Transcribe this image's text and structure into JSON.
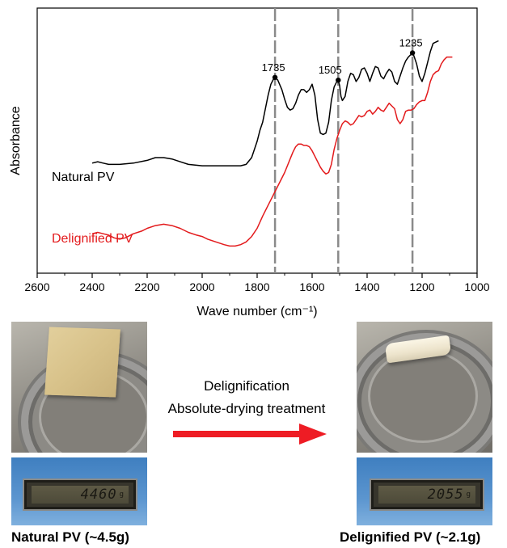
{
  "chart_data": {
    "type": "line",
    "title": "",
    "xlabel": "Wave number (cm⁻¹)",
    "ylabel": "Absorbance",
    "xlim": [
      2600,
      1000
    ],
    "x_reversed": true,
    "xticks": [
      2600,
      2400,
      2200,
      2000,
      1800,
      1600,
      1400,
      1200,
      1000
    ],
    "yticks_shown": false,
    "grid": false,
    "legend": "labels placed beside each curve",
    "series": [
      {
        "name": "Natural PV",
        "color": "#000000",
        "x": [
          2400,
          2380,
          2360,
          2340,
          2300,
          2250,
          2200,
          2170,
          2140,
          2110,
          2080,
          2050,
          2000,
          1960,
          1920,
          1880,
          1860,
          1840,
          1820,
          1800,
          1790,
          1780,
          1770,
          1760,
          1750,
          1740,
          1735,
          1725,
          1710,
          1700,
          1690,
          1680,
          1670,
          1660,
          1650,
          1640,
          1630,
          1620,
          1610,
          1600,
          1590,
          1580,
          1570,
          1560,
          1550,
          1540,
          1530,
          1520,
          1510,
          1505,
          1500,
          1495,
          1490,
          1480,
          1470,
          1460,
          1450,
          1440,
          1430,
          1420,
          1410,
          1400,
          1390,
          1380,
          1370,
          1360,
          1350,
          1340,
          1330,
          1320,
          1310,
          1300,
          1290,
          1280,
          1270,
          1260,
          1250,
          1240,
          1235,
          1230,
          1220,
          1210,
          1200,
          1190,
          1180,
          1170,
          1160,
          1150,
          1140
        ],
        "y": [
          0.06,
          0.07,
          0.06,
          0.05,
          0.05,
          0.06,
          0.08,
          0.1,
          0.1,
          0.09,
          0.07,
          0.05,
          0.04,
          0.04,
          0.04,
          0.04,
          0.04,
          0.05,
          0.1,
          0.22,
          0.3,
          0.36,
          0.46,
          0.56,
          0.64,
          0.68,
          0.69,
          0.67,
          0.6,
          0.53,
          0.47,
          0.45,
          0.46,
          0.5,
          0.56,
          0.6,
          0.6,
          0.58,
          0.6,
          0.64,
          0.56,
          0.38,
          0.28,
          0.27,
          0.28,
          0.36,
          0.52,
          0.62,
          0.66,
          0.67,
          0.63,
          0.55,
          0.52,
          0.55,
          0.66,
          0.72,
          0.71,
          0.66,
          0.69,
          0.75,
          0.76,
          0.72,
          0.66,
          0.72,
          0.77,
          0.76,
          0.7,
          0.68,
          0.72,
          0.75,
          0.73,
          0.66,
          0.64,
          0.7,
          0.76,
          0.81,
          0.84,
          0.86,
          0.87,
          0.85,
          0.79,
          0.7,
          0.66,
          0.72,
          0.8,
          0.88,
          0.94,
          0.95,
          0.96
        ]
      },
      {
        "name": "Delignified PV",
        "color": "#e31a1c",
        "x": [
          2400,
          2380,
          2360,
          2340,
          2320,
          2300,
          2280,
          2250,
          2220,
          2200,
          2170,
          2140,
          2110,
          2080,
          2050,
          2020,
          2000,
          1980,
          1950,
          1920,
          1900,
          1880,
          1860,
          1840,
          1820,
          1800,
          1780,
          1760,
          1740,
          1720,
          1700,
          1690,
          1680,
          1670,
          1660,
          1650,
          1640,
          1630,
          1620,
          1610,
          1600,
          1590,
          1580,
          1570,
          1560,
          1550,
          1540,
          1530,
          1520,
          1510,
          1500,
          1490,
          1480,
          1470,
          1460,
          1450,
          1440,
          1430,
          1420,
          1410,
          1400,
          1390,
          1380,
          1370,
          1360,
          1350,
          1340,
          1330,
          1320,
          1310,
          1300,
          1290,
          1280,
          1270,
          1260,
          1250,
          1240,
          1230,
          1220,
          1210,
          1200,
          1190,
          1180,
          1170,
          1160,
          1150,
          1140,
          1130,
          1120,
          1110,
          1100,
          1090
        ],
        "y": [
          -0.46,
          -0.45,
          -0.46,
          -0.47,
          -0.49,
          -0.5,
          -0.49,
          -0.46,
          -0.44,
          -0.42,
          -0.4,
          -0.39,
          -0.4,
          -0.42,
          -0.45,
          -0.47,
          -0.48,
          -0.5,
          -0.52,
          -0.54,
          -0.55,
          -0.55,
          -0.54,
          -0.52,
          -0.48,
          -0.42,
          -0.33,
          -0.25,
          -0.17,
          -0.09,
          -0.01,
          0.04,
          0.09,
          0.14,
          0.18,
          0.2,
          0.2,
          0.19,
          0.19,
          0.18,
          0.15,
          0.11,
          0.07,
          0.03,
          0.0,
          -0.02,
          -0.01,
          0.05,
          0.16,
          0.24,
          0.3,
          0.35,
          0.37,
          0.36,
          0.34,
          0.35,
          0.38,
          0.41,
          0.4,
          0.41,
          0.44,
          0.45,
          0.42,
          0.44,
          0.47,
          0.45,
          0.44,
          0.47,
          0.5,
          0.48,
          0.46,
          0.38,
          0.35,
          0.38,
          0.44,
          0.45,
          0.45,
          0.46,
          0.49,
          0.51,
          0.52,
          0.52,
          0.58,
          0.66,
          0.71,
          0.73,
          0.74,
          0.79,
          0.82,
          0.84,
          0.84,
          0.84
        ]
      }
    ],
    "reference_lines": [
      1735,
      1505,
      1235
    ],
    "peak_labels": [
      {
        "x": 1735,
        "label": "1735"
      },
      {
        "x": 1505,
        "label": "1505"
      },
      {
        "x": 1235,
        "label": "1235"
      }
    ]
  },
  "photos": {
    "left": {
      "readout": "4460",
      "unit": "g",
      "caption": "Natural PV (~4.5g)"
    },
    "right": {
      "readout": "2055",
      "unit": "g",
      "caption": "Delignified PV (~2.1g)"
    }
  },
  "process": {
    "line1": "Delignification",
    "line2": "Absolute-drying treatment",
    "arrow_color": "#ee1c24"
  }
}
